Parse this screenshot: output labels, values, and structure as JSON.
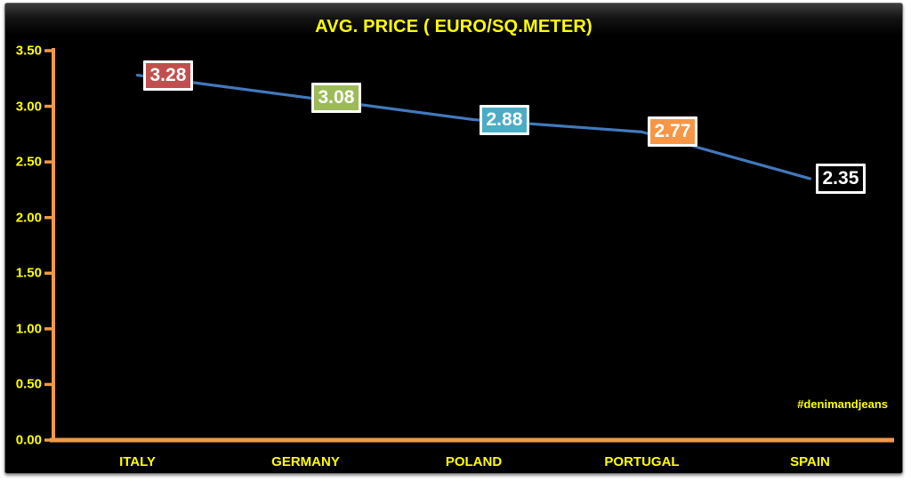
{
  "page": {
    "watermark": "#denimandjeans"
  },
  "chart_data": {
    "type": "line",
    "title": "AVG. PRICE ( EURO/SQ.METER)",
    "categories": [
      "ITALY",
      "GERMANY",
      "POLAND",
      "PORTUGAL",
      "SPAIN"
    ],
    "values": [
      3.28,
      3.08,
      2.88,
      2.77,
      2.35
    ],
    "data_labels": [
      "3.28",
      "3.08",
      "2.88",
      "2.77",
      "2.35"
    ],
    "data_label_fills": [
      "#C0504D",
      "#9BBB59",
      "#4BACC6",
      "#F79646",
      "#000000"
    ],
    "xlabel": "",
    "ylabel": "",
    "ylim": [
      0,
      3.5
    ],
    "yticks": [
      0,
      0.5,
      1,
      1.5,
      2,
      2.5,
      3,
      3.5
    ],
    "ytick_labels": [
      "0.00",
      "0.50",
      "1.00",
      "1.50",
      "2.00",
      "2.50",
      "3.00",
      "3.50"
    ],
    "grid": false,
    "legend": "none",
    "colors": {
      "background": "#000000",
      "line": "#4279BC",
      "axis": "#EF9A45",
      "title_text": "#FFFF00",
      "tick_label_text": "#FFFF00",
      "category_label_text": "#FFFF00",
      "data_label_text": "#FFFFFF",
      "data_label_border": "#FFFFFF",
      "watermark_text": "#FFFF00"
    }
  }
}
